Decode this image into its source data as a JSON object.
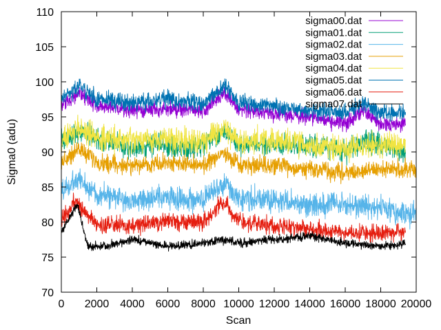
{
  "chart_data": {
    "type": "line",
    "title": "",
    "xlabel": "Scan",
    "ylabel": "Sigma0 (adu)",
    "xlim": [
      0,
      20000
    ],
    "ylim": [
      70,
      110
    ],
    "xticks": [
      0,
      2000,
      4000,
      6000,
      8000,
      10000,
      12000,
      14000,
      16000,
      18000,
      20000
    ],
    "yticks": [
      70,
      75,
      80,
      85,
      90,
      95,
      100,
      105,
      110
    ],
    "xtick_labels": [
      "0",
      "2000",
      "4000",
      "6000",
      "8000",
      "10000",
      "12000",
      "14000",
      "16000",
      "18000",
      "20000"
    ],
    "ytick_labels": [
      "70",
      "75",
      "80",
      "85",
      "90",
      "95",
      "100",
      "105",
      "110"
    ],
    "grid": false,
    "legend_position": "top-right",
    "x_end": 19400,
    "series": [
      {
        "name": "sigma00.dat",
        "color": "#9400d3",
        "base": [
          [
            0,
            96.5
          ],
          [
            1000,
            98.5
          ],
          [
            2000,
            96.5
          ],
          [
            4000,
            96
          ],
          [
            6000,
            96
          ],
          [
            8000,
            96
          ],
          [
            9200,
            98.5
          ],
          [
            10000,
            96
          ],
          [
            12000,
            95.5
          ],
          [
            14000,
            95
          ],
          [
            16000,
            94
          ],
          [
            17000,
            96
          ],
          [
            18000,
            94
          ],
          [
            19400,
            94
          ]
        ],
        "band": 1.6
      },
      {
        "name": "sigma01.dat",
        "color": "#009e73",
        "base": [
          [
            0,
            91.5
          ],
          [
            1000,
            93
          ],
          [
            2000,
            92
          ],
          [
            4000,
            90.5
          ],
          [
            5000,
            91
          ],
          [
            6000,
            91
          ],
          [
            6500,
            90.5
          ],
          [
            8000,
            91
          ],
          [
            9200,
            93
          ],
          [
            10000,
            91
          ],
          [
            12000,
            91
          ],
          [
            14000,
            91
          ],
          [
            16000,
            90
          ],
          [
            17000,
            91.5
          ],
          [
            18000,
            91
          ],
          [
            19400,
            90
          ]
        ],
        "band": 2.3
      },
      {
        "name": "sigma02.dat",
        "color": "#56b4e9",
        "base": [
          [
            0,
            84.5
          ],
          [
            1000,
            86
          ],
          [
            2000,
            84
          ],
          [
            4000,
            83
          ],
          [
            6000,
            83.5
          ],
          [
            8000,
            83
          ],
          [
            9200,
            85.5
          ],
          [
            10000,
            83.5
          ],
          [
            12000,
            83
          ],
          [
            14000,
            82.5
          ],
          [
            16000,
            82.5
          ],
          [
            18000,
            82
          ],
          [
            20000,
            81
          ]
        ],
        "band": 2.4
      },
      {
        "name": "sigma03.dat",
        "color": "#e69f00",
        "base": [
          [
            0,
            88.5
          ],
          [
            1000,
            90.5
          ],
          [
            2000,
            88.5
          ],
          [
            4000,
            88
          ],
          [
            6000,
            88.5
          ],
          [
            8000,
            88
          ],
          [
            9200,
            90
          ],
          [
            10000,
            88
          ],
          [
            12000,
            88
          ],
          [
            14000,
            87.5
          ],
          [
            16000,
            87
          ],
          [
            18000,
            87.5
          ],
          [
            20000,
            87.5
          ]
        ],
        "band": 1.8
      },
      {
        "name": "sigma04.dat",
        "color": "#f0e442",
        "base": [
          [
            0,
            91.5
          ],
          [
            1000,
            93.5
          ],
          [
            2000,
            92
          ],
          [
            4000,
            91.5
          ],
          [
            6000,
            92
          ],
          [
            8000,
            91.5
          ],
          [
            9200,
            93.5
          ],
          [
            10000,
            91.5
          ],
          [
            12000,
            91.5
          ],
          [
            14000,
            91
          ],
          [
            16000,
            90.5
          ],
          [
            18000,
            91
          ],
          [
            19400,
            91
          ]
        ],
        "band": 2.6
      },
      {
        "name": "sigma05.dat",
        "color": "#0072b2",
        "base": [
          [
            0,
            97.5
          ],
          [
            1000,
            99.5
          ],
          [
            2000,
            97.5
          ],
          [
            4000,
            97
          ],
          [
            6000,
            97.5
          ],
          [
            8000,
            97
          ],
          [
            9200,
            99.5
          ],
          [
            10000,
            97
          ],
          [
            12000,
            96.5
          ],
          [
            14000,
            96
          ],
          [
            16000,
            95.5
          ],
          [
            17000,
            97
          ],
          [
            18000,
            95.5
          ],
          [
            19400,
            95.5
          ]
        ],
        "band": 1.7
      },
      {
        "name": "sigma06.dat",
        "color": "#e51e10",
        "base": [
          [
            0,
            80
          ],
          [
            800,
            83
          ],
          [
            1500,
            81
          ],
          [
            2000,
            79.5
          ],
          [
            4000,
            79.5
          ],
          [
            6000,
            80
          ],
          [
            8000,
            80
          ],
          [
            9200,
            83
          ],
          [
            10000,
            80
          ],
          [
            12000,
            79.5
          ],
          [
            14000,
            79
          ],
          [
            16000,
            78.5
          ],
          [
            18000,
            78.5
          ],
          [
            19400,
            78.5
          ]
        ],
        "band": 1.8
      },
      {
        "name": "sigma07.dat",
        "color": "#000000",
        "base": [
          [
            0,
            78.5
          ],
          [
            900,
            82.5
          ],
          [
            1500,
            76.5
          ],
          [
            2500,
            76.5
          ],
          [
            4000,
            77.5
          ],
          [
            5000,
            77
          ],
          [
            6000,
            76.5
          ],
          [
            8000,
            77
          ],
          [
            9000,
            77.5
          ],
          [
            10000,
            77
          ],
          [
            12000,
            77.5
          ],
          [
            14000,
            78
          ],
          [
            16000,
            77
          ],
          [
            18000,
            76.5
          ],
          [
            19400,
            77
          ]
        ],
        "band": 0.9
      }
    ]
  }
}
